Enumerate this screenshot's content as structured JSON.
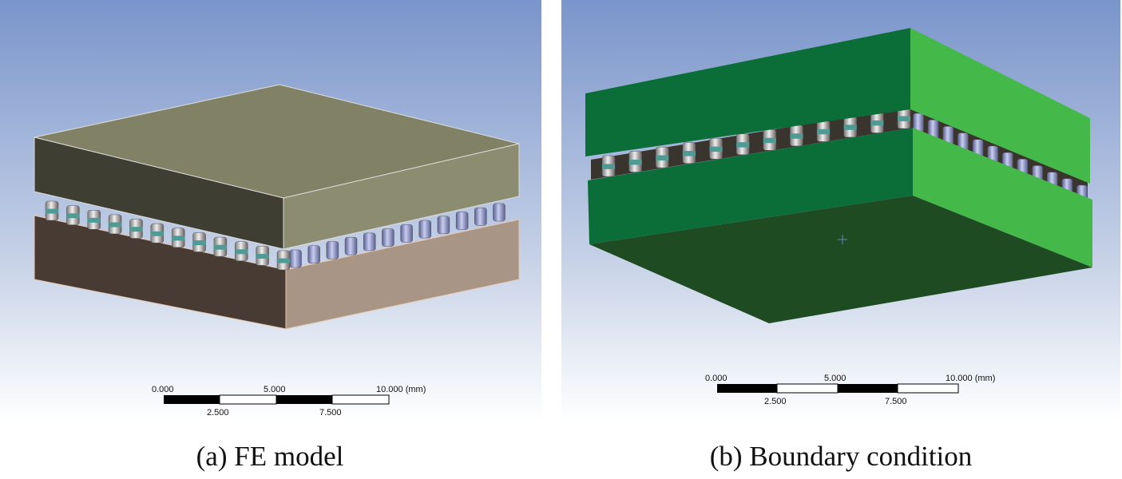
{
  "panels": [
    {
      "caption": "(a) FE model",
      "scale_bar": {
        "top_labels": [
          "0.000",
          "5.000",
          "10.000 (mm)"
        ],
        "bottom_labels": [
          "2.500",
          "7.500"
        ]
      }
    },
    {
      "caption": "(b) Boundary condition",
      "scale_bar": {
        "top_labels": [
          "0.000",
          "5.000",
          "10.000 (mm)"
        ],
        "bottom_labels": [
          "2.500",
          "7.500"
        ]
      }
    }
  ],
  "colors": {
    "background_top": "#7a95cb",
    "background_bottom": "#ffffff",
    "plate_a_top": "#818166",
    "plate_a_front": "#3f3e32",
    "plate_a_bottom_front": "#473b34",
    "plate_a_bottom_side": "#a89585",
    "plate_b_left": "#0b6e38",
    "plate_b_right": "#45b84a",
    "plate_b_bottom": "#1f4b23",
    "bump_metal": "#c8c0bc",
    "bump_ring": "#4f9a94",
    "bump_blue": "#8790c0"
  }
}
